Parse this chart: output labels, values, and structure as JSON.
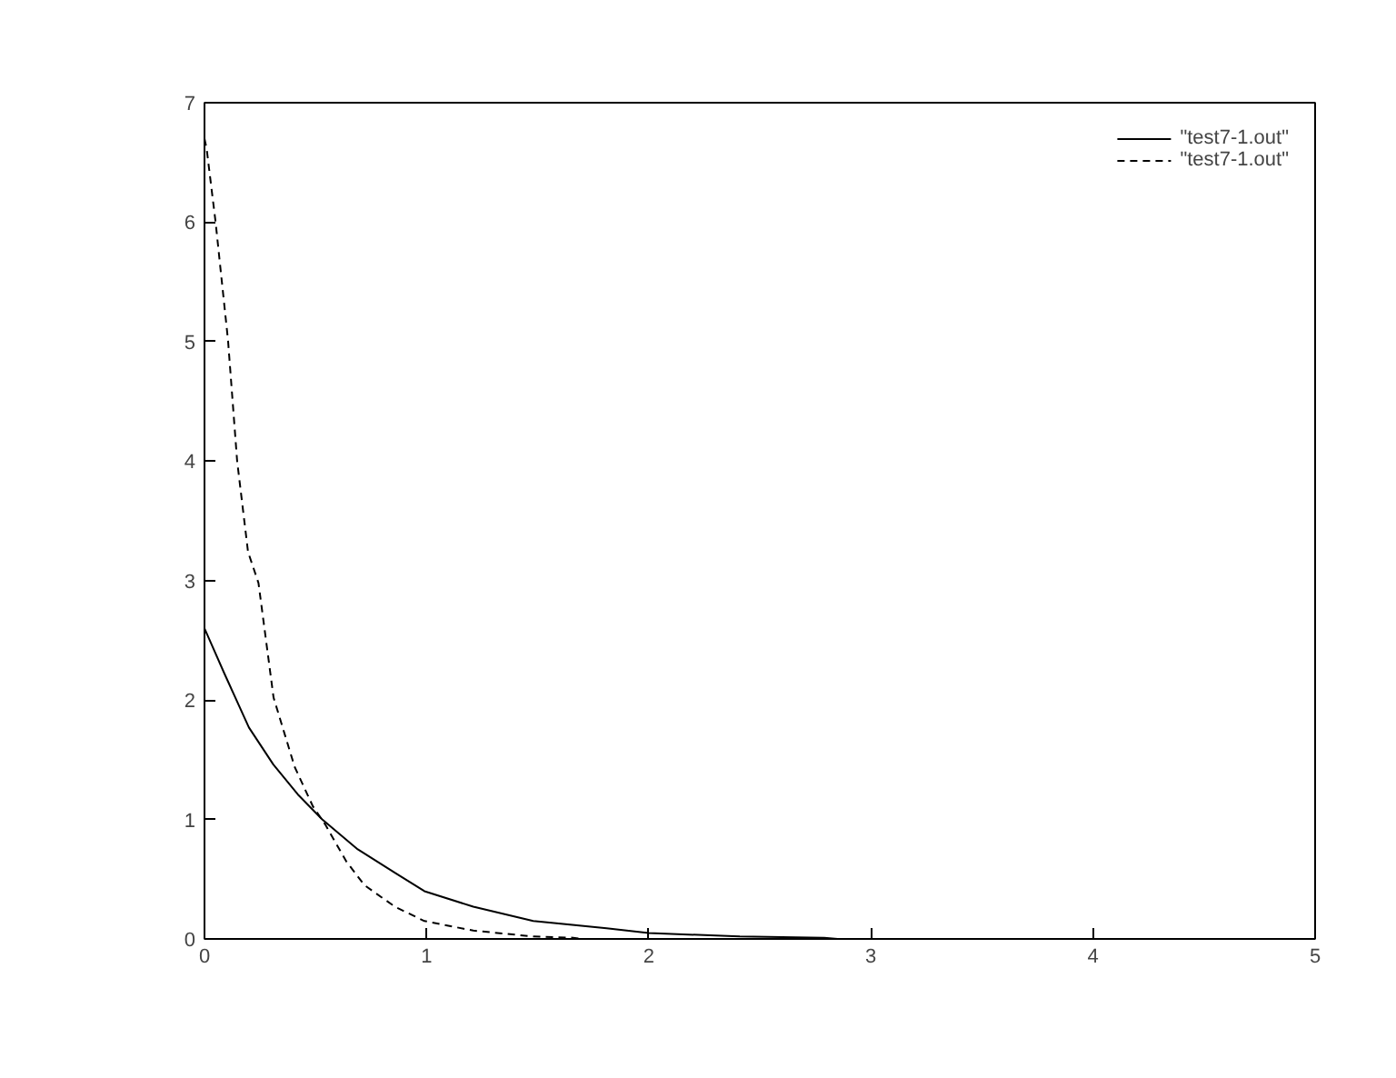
{
  "chart_data": {
    "type": "line",
    "xlim": [
      0,
      5
    ],
    "ylim": [
      0,
      7
    ],
    "xticks": [
      0,
      1,
      2,
      3,
      4,
      5
    ],
    "yticks": [
      0,
      1,
      2,
      3,
      4,
      5,
      6,
      7
    ],
    "grid": false,
    "legend": "top right",
    "marker": "none",
    "series": [
      {
        "name": "\"test7-1.out\"",
        "color": "#000000",
        "line_style": "solid",
        "x": [
          0,
          0.09,
          0.2,
          0.31,
          0.42,
          0.53,
          0.69,
          0.86,
          0.99,
          1.21,
          1.48,
          1.81,
          2.0,
          2.41,
          2.79,
          2.85
        ],
        "values": [
          2.6,
          2.22,
          1.77,
          1.46,
          1.21,
          1.0,
          0.75,
          0.55,
          0.4,
          0.27,
          0.15,
          0.09,
          0.05,
          0.02,
          0.01,
          0
        ]
      },
      {
        "name": "\"test7-1.out\"",
        "color": "#000000",
        "line_style": "dashed",
        "x": [
          0,
          0.01,
          0.05,
          0.106,
          0.147,
          0.196,
          0.243,
          0.311,
          0.406,
          0.488,
          0.543,
          0.638,
          0.72,
          0.857,
          0.99,
          1.21,
          1.48,
          1.66,
          1.7
        ],
        "values": [
          6.7,
          6.61,
          6.0,
          5.01,
          4.0,
          3.24,
          2.98,
          2.02,
          1.44,
          1.11,
          0.96,
          0.65,
          0.45,
          0.27,
          0.15,
          0.07,
          0.02,
          0.01,
          0
        ]
      }
    ]
  }
}
